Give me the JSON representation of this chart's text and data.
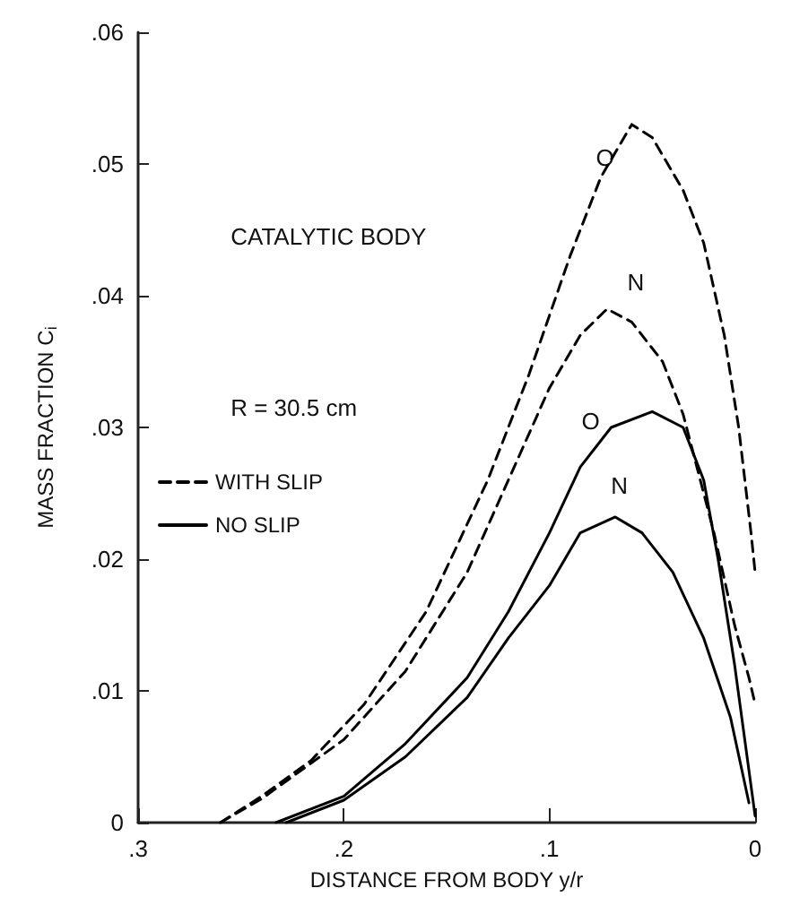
{
  "chart_data": {
    "type": "line",
    "xlabel": "DISTANCE FROM BODY y/r",
    "ylabel": "MASS FRACTION C$_{i}$",
    "xlim": [
      0.3,
      0
    ],
    "xticks": [
      {
        "value": 0.3,
        "label": ".3"
      },
      {
        "value": 0.2,
        "label": ".2"
      },
      {
        "value": 0.1,
        "label": ".1"
      },
      0
    ],
    "ylim": [
      0,
      0.06
    ],
    "yticks": [
      0,
      {
        "value": 0.01,
        "label": ".01"
      },
      {
        "value": 0.02,
        "label": ".02"
      },
      {
        "value": 0.03,
        "label": ".03"
      },
      {
        "value": 0.04,
        "label": ".04"
      },
      {
        "value": 0.05,
        "label": ".05"
      },
      {
        "value": 0.06,
        "label": ".06"
      }
    ],
    "grid": false,
    "legend": "left",
    "marker": "none",
    "series": [
      {
        "name": "WITH SLIP",
        "color": "#000000",
        "line_style": "dashed",
        "x": [
          0.26,
          0.24,
          0.216,
          0.19,
          0.16,
          0.13,
          0.11,
          0.09,
          0.075,
          0.06,
          0.05,
          0.035,
          0.025,
          0.015,
          0.008,
          0.002,
          0
        ],
        "values": [
          0,
          0.002,
          0.0047,
          0.009,
          0.016,
          0.026,
          0.034,
          0.043,
          0.049,
          0.053,
          0.052,
          0.048,
          0.044,
          0.037,
          0.03,
          0.022,
          0.019
        ]
      },
      {
        "color": "#000000",
        "line_style": "dashed",
        "x": [
          0.26,
          0.24,
          0.216,
          0.2,
          0.17,
          0.14,
          0.12,
          0.1,
          0.085,
          0.072,
          0.06,
          0.045,
          0.035,
          0.02,
          0.01,
          0.003,
          0
        ],
        "values": [
          0,
          0.0018,
          0.0045,
          0.0063,
          0.0115,
          0.019,
          0.026,
          0.033,
          0.037,
          0.039,
          0.038,
          0.035,
          0.031,
          0.022,
          0.015,
          0.011,
          0.009
        ]
      },
      {
        "name": "NO SLIP",
        "color": "#000000",
        "line_style": "solid",
        "x": [
          0.233,
          0.2,
          0.17,
          0.14,
          0.12,
          0.1,
          0.085,
          0.07,
          0.05,
          0.035,
          0.025,
          0.018,
          0.01,
          0
        ],
        "values": [
          0,
          0.002,
          0.006,
          0.011,
          0.016,
          0.022,
          0.027,
          0.03,
          0.0312,
          0.03,
          0.026,
          0.02,
          0.012,
          0.0005
        ]
      },
      {
        "color": "#000000",
        "line_style": "solid",
        "x": [
          0.228,
          0.2,
          0.17,
          0.14,
          0.12,
          0.1,
          0.085,
          0.068,
          0.055,
          0.04,
          0.025,
          0.012,
          0.003
        ],
        "values": [
          0,
          0.0017,
          0.005,
          0.0095,
          0.014,
          0.018,
          0.022,
          0.0232,
          0.022,
          0.019,
          0.014,
          0.008,
          0.0015
        ]
      }
    ],
    "annotations": [
      "CATALYTIC BODY",
      "R = 30.5 cm",
      "O",
      "N",
      "O",
      "N"
    ]
  }
}
